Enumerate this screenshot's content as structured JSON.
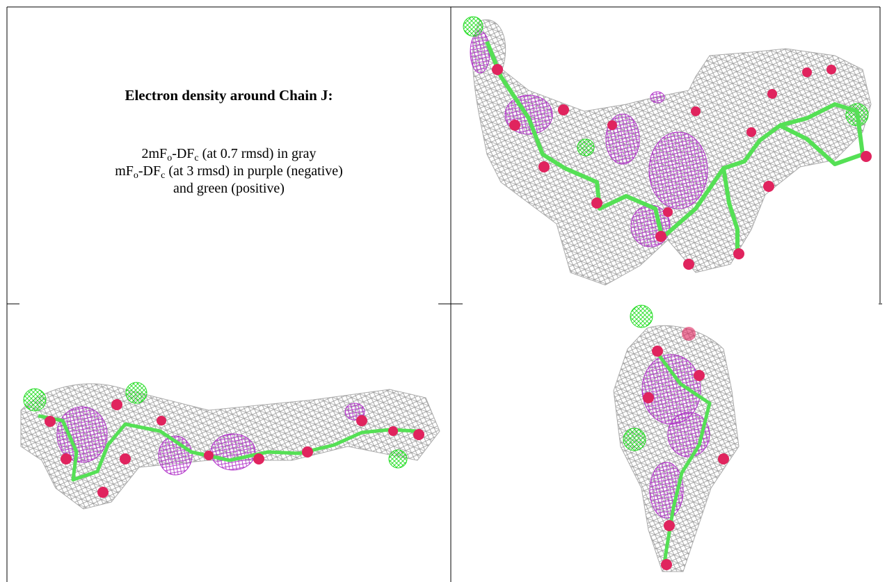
{
  "cell_text": {
    "title": "Electron density around Chain J:",
    "lines": [
      [
        "2mF",
        "o",
        "-DF",
        "c",
        " (at 0.7 rmsd) in gray"
      ],
      [
        "mF",
        "o",
        "-DF",
        "c",
        " (at 3 rmsd) in purple (negative)"
      ],
      [
        "and green (positive)"
      ]
    ]
  }
}
